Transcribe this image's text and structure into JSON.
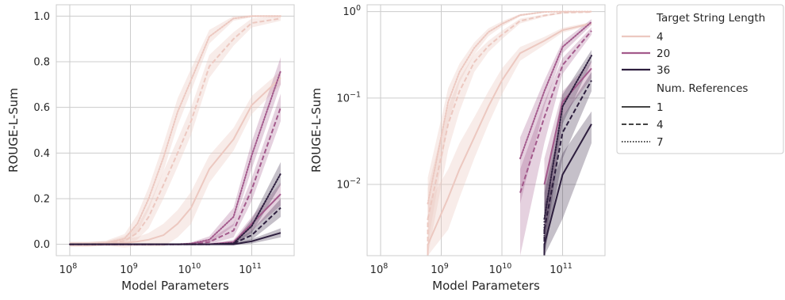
{
  "colors": {
    "len_4": "#ecc8c0",
    "len_20": "#a35a8c",
    "len_36": "#2d1e3e",
    "grid": "#cccccc"
  },
  "legend": {
    "title_length": "Target String Length",
    "lengths": [
      "4",
      "20",
      "36"
    ],
    "title_refs": "Num. References",
    "refs": [
      "1",
      "4",
      "7"
    ],
    "placement": "outside-right"
  },
  "chart_data": [
    {
      "type": "line",
      "xlabel": "Model Parameters",
      "ylabel": "ROUGE-L-Sum",
      "xscale": "log",
      "yscale": "linear",
      "xlim": [
        60000000,
        500000000000
      ],
      "ylim": [
        -0.05,
        1.05
      ],
      "xticks": [
        {
          "value": 100000000,
          "base": "10",
          "exp": "8"
        },
        {
          "value": 1000000000,
          "base": "10",
          "exp": "9"
        },
        {
          "value": 10000000000,
          "base": "10",
          "exp": "10"
        },
        {
          "value": 100000000000,
          "base": "10",
          "exp": "11"
        }
      ],
      "yticks": [
        {
          "value": 0.0,
          "label": "0.0"
        },
        {
          "value": 0.2,
          "label": "0.2"
        },
        {
          "value": 0.4,
          "label": "0.4"
        },
        {
          "value": 0.6,
          "label": "0.6"
        },
        {
          "value": 0.8,
          "label": "0.8"
        },
        {
          "value": 1.0,
          "label": "1.0"
        }
      ],
      "grid": true,
      "x": [
        100000000,
        200000000,
        400000000,
        800000000,
        1300000000,
        2000000000,
        3500000000,
        6000000000,
        10000000000,
        20000000000,
        50000000000,
        100000000000,
        300000000000
      ],
      "series": [
        {
          "length": "4",
          "refs": "1",
          "values": [
            0,
            0,
            0.002,
            0.006,
            0.012,
            0.02,
            0.04,
            0.09,
            0.16,
            0.33,
            0.46,
            0.61,
            0.73
          ],
          "band": [
            0.01,
            0.01,
            0.01,
            0.02,
            0.02,
            0.03,
            0.05,
            0.06,
            0.07,
            0.06,
            0.05,
            0.04,
            0.03
          ]
        },
        {
          "length": "4",
          "refs": "4",
          "values": [
            0,
            0,
            0.004,
            0.015,
            0.05,
            0.12,
            0.26,
            0.4,
            0.54,
            0.78,
            0.9,
            0.97,
            0.99
          ],
          "band": [
            0.01,
            0.01,
            0.01,
            0.02,
            0.03,
            0.05,
            0.06,
            0.06,
            0.06,
            0.05,
            0.03,
            0.02,
            0.01
          ]
        },
        {
          "length": "4",
          "refs": "7",
          "values": [
            0,
            0,
            0.006,
            0.025,
            0.09,
            0.2,
            0.38,
            0.58,
            0.72,
            0.91,
            0.99,
            1.0,
            1.0
          ],
          "band": [
            0.01,
            0.01,
            0.01,
            0.02,
            0.04,
            0.05,
            0.06,
            0.06,
            0.05,
            0.03,
            0.01,
            0.005,
            0.005
          ]
        },
        {
          "length": "20",
          "refs": "1",
          "values": [
            0,
            0,
            0,
            0,
            0,
            0,
            0,
            0,
            0,
            0.0,
            0.01,
            0.09,
            0.22
          ],
          "band": [
            0.003,
            0.003,
            0.003,
            0.003,
            0.003,
            0.003,
            0.003,
            0.003,
            0.003,
            0.003,
            0.01,
            0.03,
            0.05
          ]
        },
        {
          "length": "20",
          "refs": "4",
          "values": [
            0,
            0,
            0,
            0,
            0,
            0,
            0,
            0,
            0.001,
            0.01,
            0.06,
            0.24,
            0.6
          ],
          "band": [
            0.003,
            0.003,
            0.003,
            0.003,
            0.003,
            0.003,
            0.003,
            0.003,
            0.004,
            0.01,
            0.03,
            0.05,
            0.06
          ]
        },
        {
          "length": "20",
          "refs": "7",
          "values": [
            0,
            0,
            0,
            0,
            0,
            0,
            0,
            0,
            0.003,
            0.02,
            0.12,
            0.39,
            0.76
          ],
          "band": [
            0.003,
            0.003,
            0.003,
            0.003,
            0.003,
            0.003,
            0.003,
            0.003,
            0.005,
            0.015,
            0.04,
            0.06,
            0.06
          ]
        },
        {
          "length": "36",
          "refs": "1",
          "values": [
            0,
            0,
            0,
            0,
            0,
            0,
            0,
            0,
            0,
            0,
            0,
            0.013,
            0.05
          ],
          "band": [
            0.002,
            0.002,
            0.002,
            0.002,
            0.002,
            0.002,
            0.002,
            0.002,
            0.002,
            0.002,
            0.004,
            0.01,
            0.02
          ]
        },
        {
          "length": "36",
          "refs": "4",
          "values": [
            0,
            0,
            0,
            0,
            0,
            0,
            0,
            0,
            0,
            0,
            0.003,
            0.04,
            0.16
          ],
          "band": [
            0.002,
            0.002,
            0.002,
            0.002,
            0.002,
            0.002,
            0.002,
            0.002,
            0.002,
            0.002,
            0.005,
            0.02,
            0.04
          ]
        },
        {
          "length": "36",
          "refs": "7",
          "values": [
            0,
            0,
            0,
            0,
            0,
            0,
            0,
            0,
            0,
            0,
            0.004,
            0.08,
            0.31
          ],
          "band": [
            0.002,
            0.002,
            0.002,
            0.002,
            0.002,
            0.002,
            0.002,
            0.002,
            0.002,
            0.002,
            0.006,
            0.03,
            0.05
          ]
        }
      ]
    },
    {
      "type": "line",
      "xlabel": "Model Parameters",
      "ylabel": "ROUGE-L-Sum",
      "xscale": "log",
      "yscale": "log",
      "xlim": [
        60000000,
        500000000000
      ],
      "ylim": [
        0.0015,
        1.2
      ],
      "xticks": [
        {
          "value": 100000000,
          "base": "10",
          "exp": "8"
        },
        {
          "value": 1000000000,
          "base": "10",
          "exp": "9"
        },
        {
          "value": 10000000000,
          "base": "10",
          "exp": "10"
        },
        {
          "value": 100000000000,
          "base": "10",
          "exp": "11"
        }
      ],
      "yticks": [
        {
          "value": 1,
          "base": "10",
          "exp": "0"
        },
        {
          "value": 0.1,
          "base": "10",
          "exp": "−1"
        },
        {
          "value": 0.01,
          "base": "10",
          "exp": "−2"
        }
      ],
      "grid": true,
      "series": [
        {
          "length": "4",
          "refs": "1",
          "x": [
            600000000,
            1300000000,
            2000000000,
            3500000000,
            6000000000,
            10000000000,
            20000000000,
            50000000000,
            100000000000,
            300000000000
          ],
          "values": [
            0.002,
            0.007,
            0.015,
            0.035,
            0.08,
            0.16,
            0.33,
            0.46,
            0.61,
            0.73
          ],
          "band_low": [
            0.0015,
            0.003,
            0.007,
            0.02,
            0.05,
            0.11,
            0.27,
            0.41,
            0.57,
            0.7
          ],
          "band_high": [
            0.006,
            0.015,
            0.03,
            0.06,
            0.12,
            0.22,
            0.39,
            0.51,
            0.65,
            0.76
          ]
        },
        {
          "length": "4",
          "refs": "4",
          "x": [
            600000000,
            1300000000,
            2000000000,
            3500000000,
            6000000000,
            10000000000,
            20000000000,
            50000000000,
            100000000000,
            300000000000
          ],
          "values": [
            0.004,
            0.05,
            0.12,
            0.26,
            0.4,
            0.54,
            0.78,
            0.9,
            0.97,
            0.99
          ],
          "band_low": [
            0.0015,
            0.025,
            0.07,
            0.2,
            0.34,
            0.48,
            0.73,
            0.87,
            0.95,
            0.98
          ],
          "band_high": [
            0.009,
            0.08,
            0.17,
            0.32,
            0.46,
            0.6,
            0.83,
            0.93,
            0.99,
            1.0
          ]
        },
        {
          "length": "4",
          "refs": "7",
          "x": [
            600000000,
            1300000000,
            2000000000,
            3500000000,
            6000000000,
            10000000000,
            20000000000,
            50000000000,
            100000000000,
            300000000000
          ],
          "values": [
            0.006,
            0.09,
            0.2,
            0.38,
            0.58,
            0.72,
            0.91,
            0.99,
            1.0,
            1.0
          ],
          "band_low": [
            0.002,
            0.05,
            0.15,
            0.32,
            0.52,
            0.67,
            0.88,
            0.98,
            0.995,
            0.995
          ],
          "band_high": [
            0.012,
            0.13,
            0.25,
            0.44,
            0.64,
            0.77,
            0.94,
            1.0,
            1.0,
            1.0
          ]
        },
        {
          "length": "20",
          "refs": "1",
          "x": [
            50000000000,
            100000000000,
            300000000000
          ],
          "values": [
            0.01,
            0.09,
            0.22
          ],
          "band_low": [
            0.002,
            0.06,
            0.17
          ],
          "band_high": [
            0.02,
            0.12,
            0.27
          ]
        },
        {
          "length": "20",
          "refs": "4",
          "x": [
            20000000000,
            50000000000,
            100000000000,
            300000000000
          ],
          "values": [
            0.008,
            0.06,
            0.24,
            0.6
          ],
          "band_low": [
            0.0015,
            0.03,
            0.19,
            0.54
          ],
          "band_high": [
            0.015,
            0.09,
            0.29,
            0.66
          ]
        },
        {
          "length": "20",
          "refs": "7",
          "x": [
            20000000000,
            50000000000,
            100000000000,
            300000000000
          ],
          "values": [
            0.02,
            0.12,
            0.39,
            0.76
          ],
          "band_low": [
            0.006,
            0.08,
            0.33,
            0.7
          ],
          "band_high": [
            0.035,
            0.16,
            0.45,
            0.82
          ]
        },
        {
          "length": "36",
          "refs": "1",
          "x": [
            50000000000,
            100000000000,
            300000000000
          ],
          "values": [
            0.002,
            0.013,
            0.05
          ],
          "band_low": [
            0.0015,
            0.004,
            0.03
          ],
          "band_high": [
            0.006,
            0.023,
            0.07
          ]
        },
        {
          "length": "36",
          "refs": "4",
          "x": [
            50000000000,
            100000000000,
            300000000000
          ],
          "values": [
            0.003,
            0.04,
            0.16
          ],
          "band_low": [
            0.0015,
            0.02,
            0.12
          ],
          "band_high": [
            0.008,
            0.06,
            0.2
          ]
        },
        {
          "length": "36",
          "refs": "7",
          "x": [
            50000000000,
            100000000000,
            300000000000
          ],
          "values": [
            0.004,
            0.08,
            0.31
          ],
          "band_low": [
            0.0015,
            0.05,
            0.26
          ],
          "band_high": [
            0.01,
            0.11,
            0.36
          ]
        }
      ]
    }
  ]
}
